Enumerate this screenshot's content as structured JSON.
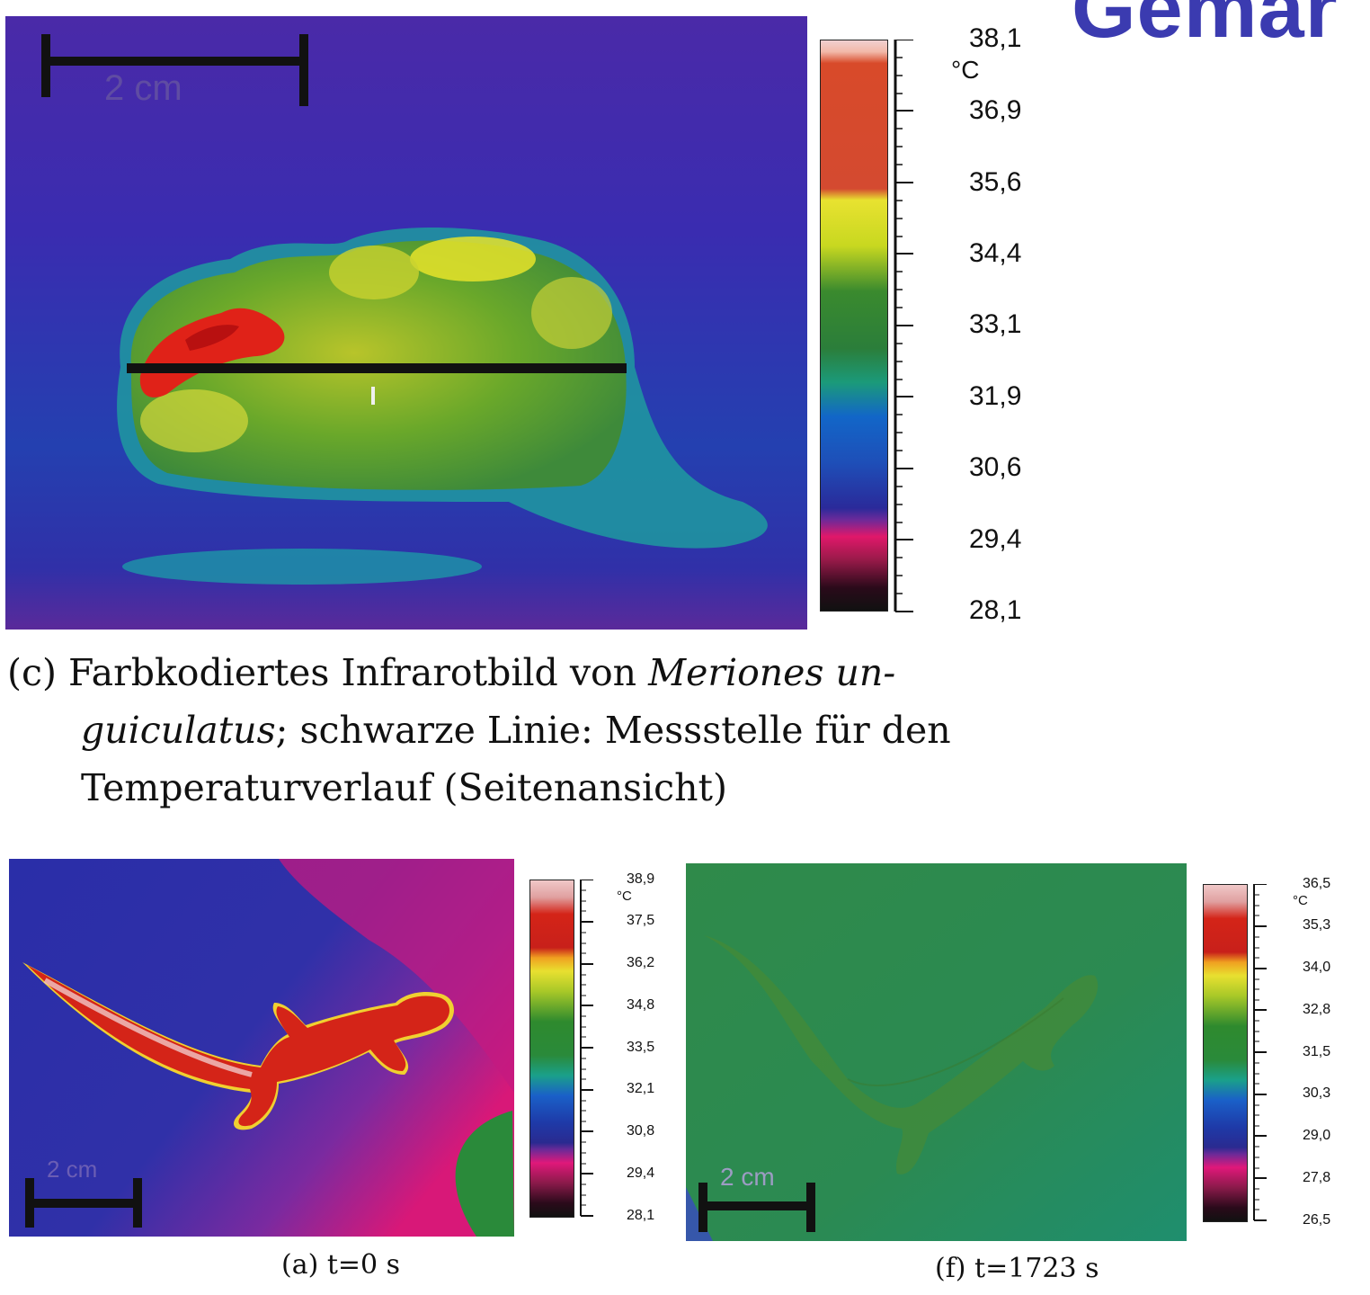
{
  "header": {
    "corner_title": "Gemar"
  },
  "figure_c": {
    "scale_bar_label": "2 cm",
    "colorbar": {
      "unit": "°C",
      "ticks": [
        "38,1",
        "36,9",
        "35,6",
        "34,4",
        "33,1",
        "31,9",
        "30,6",
        "29,4",
        "28,1"
      ]
    },
    "caption": {
      "prefix": "(c) Farbkodiertes Infrarotbild von ",
      "italic_1": "Meriones un-",
      "italic_2": "guiculatus",
      "rest_line2": "; schwarze Linie: Messstelle für den",
      "line3": "Temperaturverlauf (Seitenansicht)"
    }
  },
  "figure_a": {
    "scale_bar_label": "2 cm",
    "colorbar": {
      "unit": "°C",
      "ticks": [
        "38,9",
        "37,5",
        "36,2",
        "34,8",
        "33,5",
        "32,1",
        "30,8",
        "29,4",
        "28,1"
      ]
    },
    "caption": "(a) t=0 s"
  },
  "figure_f": {
    "scale_bar_label": "2 cm",
    "colorbar": {
      "unit": "°C",
      "ticks": [
        "36,5",
        "35,3",
        "34,0",
        "32,8",
        "31,5",
        "30,3",
        "29,0",
        "27,8",
        "26,5"
      ]
    },
    "caption": "(f) t=1723 s"
  },
  "colors": {
    "palette": [
      "#f2c8c8",
      "#cc2a1e",
      "#e9e215",
      "#2d8a2d",
      "#1f8f7a",
      "#1f5fc0",
      "#2a2a8a",
      "#d8186e",
      "#1a0a12"
    ]
  }
}
